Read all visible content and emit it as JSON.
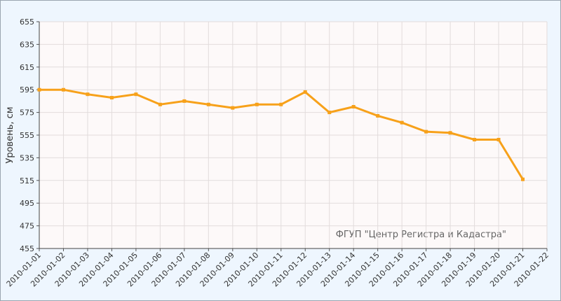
{
  "chart_data": {
    "type": "line",
    "y_label": "Уровень, см",
    "annotation": "ФГУП \"Центр Регистра и Кадастра\"",
    "categories": [
      "2010-01-01",
      "2010-01-02",
      "2010-01-03",
      "2010-01-04",
      "2010-01-05",
      "2010-01-06",
      "2010-01-07",
      "2010-01-08",
      "2010-01-09",
      "2010-01-10",
      "2010-01-11",
      "2010-01-12",
      "2010-01-13",
      "2010-01-14",
      "2010-01-15",
      "2010-01-16",
      "2010-01-17",
      "2010-01-18",
      "2010-01-19",
      "2010-01-20",
      "2010-01-21",
      "2010-01-22"
    ],
    "series": [
      {
        "color": "#f7a11a",
        "values": [
          595,
          595,
          591,
          588,
          591,
          582,
          585,
          582,
          579,
          582,
          582,
          593,
          575,
          580,
          572,
          566,
          558,
          557,
          551,
          551,
          516,
          null
        ]
      }
    ],
    "ylim": [
      455,
      655
    ],
    "yticks": [
      455,
      475,
      495,
      515,
      535,
      555,
      575,
      595,
      615,
      635,
      655
    ],
    "grid": true
  }
}
